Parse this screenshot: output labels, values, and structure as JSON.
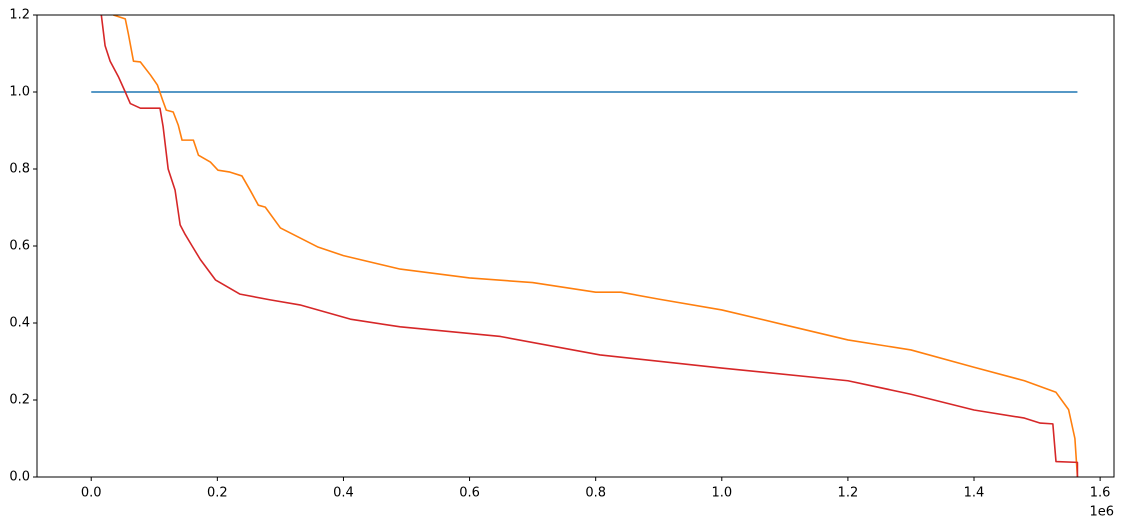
{
  "chart_data": {
    "type": "line",
    "xlim": [
      -86000,
      1622000
    ],
    "ylim": [
      0,
      1.2
    ],
    "xticks": [
      {
        "value": 0,
        "label": "0.0"
      },
      {
        "value": 200000,
        "label": "0.2"
      },
      {
        "value": 400000,
        "label": "0.4"
      },
      {
        "value": 600000,
        "label": "0.6"
      },
      {
        "value": 800000,
        "label": "0.8"
      },
      {
        "value": 1000000,
        "label": "1.0"
      },
      {
        "value": 1200000,
        "label": "1.2"
      },
      {
        "value": 1400000,
        "label": "1.4"
      },
      {
        "value": 1600000,
        "label": "1.6"
      }
    ],
    "x_offset_text": "1e6",
    "yticks": [
      {
        "value": 0,
        "label": "0.0"
      },
      0.2,
      0.4,
      0.6,
      0.8,
      {
        "value": 1,
        "label": "1.0"
      },
      1.2
    ],
    "grid": false,
    "series": [
      {
        "color": "#1f77b4",
        "x": [
          0,
          1564000
        ],
        "values": [
          1,
          1
        ]
      },
      {
        "color": "#ff7f0e",
        "x": [
          35000,
          54000,
          59000,
          67000,
          78000,
          94000,
          105000,
          113000,
          119000,
          130000,
          138000,
          144000,
          162000,
          170000,
          189000,
          201000,
          220000,
          239000,
          252000,
          265000,
          276000,
          300000,
          360000,
          400000,
          490000,
          600000,
          700000,
          800000,
          840000,
          900000,
          1000000,
          1100000,
          1200000,
          1300000,
          1400000,
          1480000,
          1530000,
          1550000,
          1560000,
          1564000
        ],
        "values": [
          1.2,
          1.19,
          1.15,
          1.08,
          1.078,
          1.044,
          1.018,
          0.98,
          0.953,
          0.948,
          0.914,
          0.875,
          0.875,
          0.836,
          0.818,
          0.797,
          0.792,
          0.782,
          0.745,
          0.706,
          0.701,
          0.647,
          0.597,
          0.575,
          0.54,
          0.517,
          0.505,
          0.48,
          0.48,
          0.462,
          0.434,
          0.395,
          0.356,
          0.33,
          0.285,
          0.25,
          0.22,
          0.175,
          0.1,
          0
        ]
      },
      {
        "color": "#d62728",
        "x": [
          16000,
          22000,
          30000,
          43000,
          54000,
          62000,
          78000,
          109000,
          114000,
          122000,
          133000,
          141000,
          149000,
          160000,
          173000,
          197000,
          236000,
          284000,
          331000,
          411000,
          490000,
          649000,
          807000,
          1000000,
          1200000,
          1300000,
          1400000,
          1480000,
          1505000,
          1525000,
          1530000,
          1564000,
          1564000
        ],
        "values": [
          1.2,
          1.12,
          1.08,
          1.04,
          1.0,
          0.97,
          0.958,
          0.958,
          0.91,
          0.8,
          0.745,
          0.655,
          0.63,
          0.6,
          0.565,
          0.512,
          0.475,
          0.46,
          0.447,
          0.41,
          0.39,
          0.365,
          0.317,
          0.283,
          0.25,
          0.215,
          0.174,
          0.153,
          0.14,
          0.138,
          0.04,
          0.038,
          0
        ]
      }
    ]
  }
}
